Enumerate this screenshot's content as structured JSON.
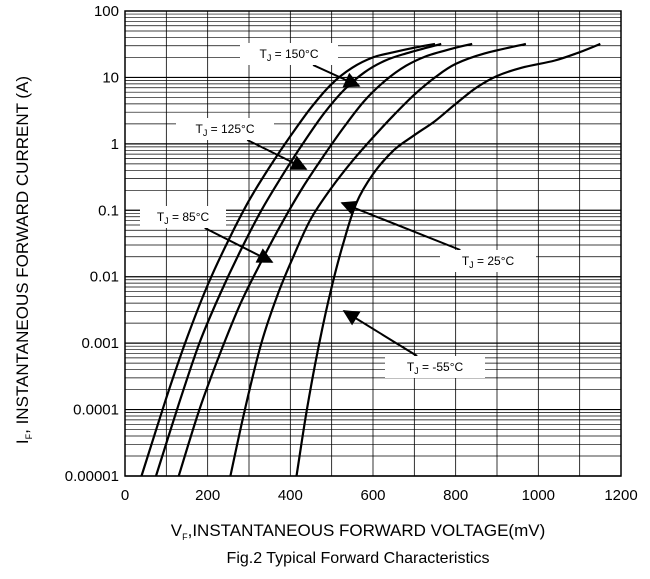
{
  "chart_data": {
    "type": "line",
    "caption": "Fig.2 Typical Forward Characteristics",
    "xlabel_main": "V",
    "xlabel_sub": "F",
    "xlabel_rest": ",INSTANTANEOUS FORWARD VOLTAGE(mV)",
    "ylabel_main": "I",
    "ylabel_sub": "F",
    "ylabel_rest": ", INSTANTANEOUS FORWARD CURRENT (A)",
    "xlim": [
      0,
      1200
    ],
    "ylim": [
      1e-05,
      100
    ],
    "yscale": "log",
    "grid": true,
    "x_ticks": [
      "0",
      "200",
      "400",
      "600",
      "800",
      "1000",
      "1200"
    ],
    "y_ticks": [
      "0.00001",
      "0.0001",
      "0.001",
      "0.01",
      "0.1",
      "1",
      "10",
      "100"
    ],
    "series": [
      {
        "name": "150°C",
        "x": [
          40,
          100,
          150,
          200,
          250,
          300,
          350,
          400,
          450,
          500,
          550,
          600,
          650,
          700,
          750
        ],
        "y": [
          1e-05,
          0.00015,
          0.0012,
          0.0075,
          0.035,
          0.14,
          0.45,
          1.3,
          3.5,
          8,
          14,
          20,
          24,
          28,
          32
        ]
      },
      {
        "name": "125°C",
        "x": [
          75,
          130,
          180,
          230,
          280,
          330,
          380,
          430,
          480,
          530,
          580,
          630,
          680,
          730,
          765
        ],
        "y": [
          1e-05,
          0.00012,
          0.001,
          0.0055,
          0.025,
          0.1,
          0.33,
          1.0,
          2.8,
          6.5,
          12,
          18,
          23,
          28,
          32
        ]
      },
      {
        "name": "85°C",
        "x": [
          130,
          180,
          230,
          280,
          330,
          380,
          430,
          480,
          530,
          580,
          630,
          680,
          730,
          790,
          840
        ],
        "y": [
          1e-05,
          0.0001,
          0.0007,
          0.004,
          0.017,
          0.065,
          0.22,
          0.65,
          1.8,
          4.5,
          9,
          15,
          21,
          27,
          32
        ]
      },
      {
        "name": "25°C",
        "x": [
          255,
          290,
          330,
          370,
          410,
          450,
          500,
          550,
          600,
          650,
          700,
          750,
          800,
          870,
          970
        ],
        "y": [
          1e-05,
          0.0001,
          0.001,
          0.0055,
          0.022,
          0.075,
          0.22,
          0.55,
          1.25,
          2.7,
          5.5,
          10,
          16,
          23,
          32
        ]
      },
      {
        "name": "-55°C",
        "x": [
          415,
          440,
          470,
          500,
          530,
          560,
          600,
          650,
          700,
          750,
          800,
          850,
          900,
          960,
          1040,
          1100,
          1150
        ],
        "y": [
          1e-05,
          0.0001,
          0.001,
          0.007,
          0.035,
          0.13,
          0.35,
          0.8,
          1.35,
          2.2,
          4,
          7,
          10.5,
          14,
          18,
          24,
          32
        ]
      }
    ],
    "annotations": [
      {
        "prefix": "T",
        "sub": "J",
        "text": " = 150°C"
      },
      {
        "prefix": "T",
        "sub": "J",
        "text": " = 125°C"
      },
      {
        "prefix": "T",
        "sub": "J",
        "text": " = 85°C"
      },
      {
        "prefix": "T",
        "sub": "J",
        "text": " = 25°C"
      },
      {
        "prefix": "T",
        "sub": "J",
        "text": " = -55°C"
      }
    ]
  }
}
